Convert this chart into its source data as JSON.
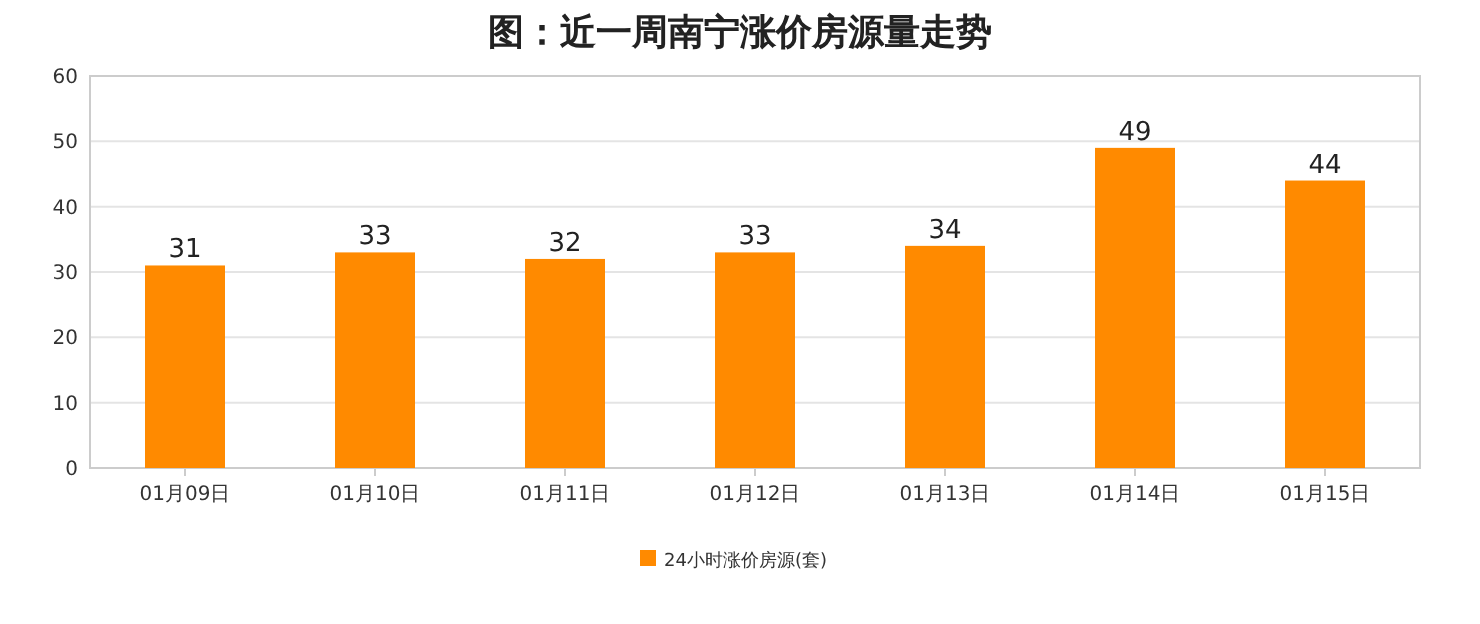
{
  "chart_data": {
    "type": "bar",
    "title": "图：近一周南宁涨价房源量走势",
    "categories": [
      "01月09日",
      "01月10日",
      "01月11日",
      "01月12日",
      "01月13日",
      "01月14日",
      "01月15日"
    ],
    "series": [
      {
        "name": "24小时涨价房源(套)",
        "color": "#ff8a00",
        "values": [
          31,
          33,
          32,
          33,
          34,
          49,
          44
        ]
      }
    ],
    "ylim": [
      0,
      60
    ],
    "yticks": [
      0,
      10,
      20,
      30,
      40,
      50,
      60
    ],
    "grid": "y",
    "legend": "bottom",
    "data_labels": true
  }
}
